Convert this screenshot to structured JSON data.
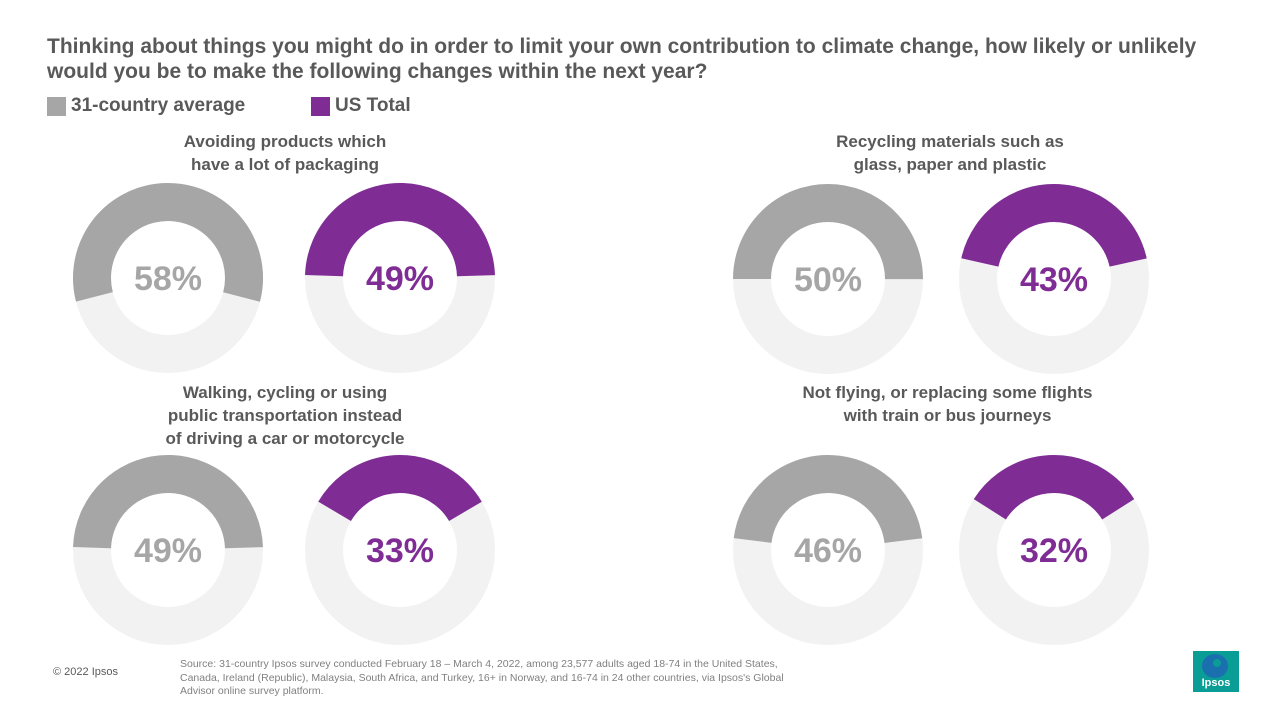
{
  "title": "Thinking about things you might do in order to limit your own contribution to climate change, how likely or unlikely would you be to make the following changes within the next year?",
  "legend": [
    {
      "label": "31-country average",
      "color": "#a6a6a6"
    },
    {
      "label": "US Total",
      "color": "#7f2c95"
    }
  ],
  "colors": {
    "average": "#a6a6a6",
    "us": "#7f2c95",
    "track": "#f2f2f2",
    "average_text": "#a6a6a6"
  },
  "chart_data": {
    "type": "donut",
    "series": [
      {
        "name": "31-country average"
      },
      {
        "name": "US Total"
      }
    ],
    "panels": [
      {
        "title_lines": [
          "Avoiding products which",
          "have a lot of packaging"
        ],
        "average": 58,
        "us": 49,
        "average_label": "58%",
        "us_label": "49%"
      },
      {
        "title_lines": [
          "Recycling materials such as",
          "glass, paper and plastic"
        ],
        "average": 50,
        "us": 43,
        "average_label": "50%",
        "us_label": "43%"
      },
      {
        "title_lines": [
          "Walking, cycling or using",
          "public transportation instead",
          "of driving a car or motorcycle"
        ],
        "average": 49,
        "us": 33,
        "average_label": "49%",
        "us_label": "33%"
      },
      {
        "title_lines": [
          "Not flying, or replacing some flights",
          "with train or bus journeys"
        ],
        "average": 46,
        "us": 32,
        "average_label": "46%",
        "us_label": "32%"
      }
    ]
  },
  "footer": {
    "copyright": "© 2022 Ipsos",
    "source": "Source: 31-country Ipsos survey conducted February 18 – March 4, 2022, among 23,577 adults aged 18-74 in the United States, Canada, Ireland (Republic), Malaysia, South Africa,  and Turkey, 16+ in Norway, and 16-74 in 24 other countries, via Ipsos's Global Advisor online survey platform.",
    "logo_text": "Ipsos"
  }
}
